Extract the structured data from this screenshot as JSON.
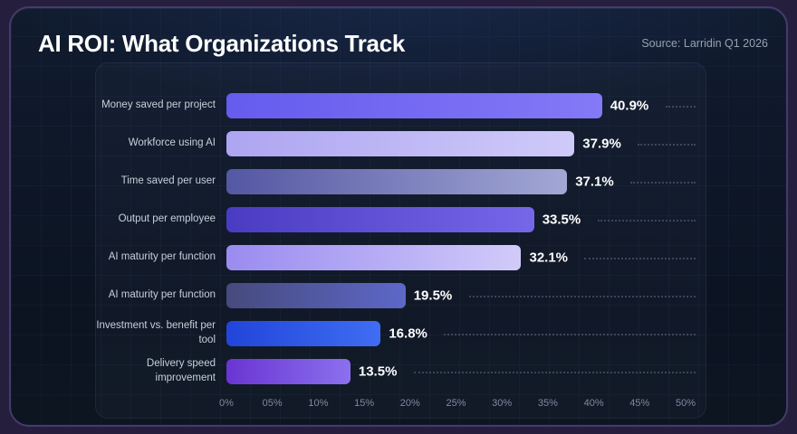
{
  "header": {
    "title": "AI ROI: What Organizations Track",
    "source": "Source: Larridin Q1 2026"
  },
  "chart_data": {
    "type": "bar",
    "orientation": "horizontal",
    "title": "AI ROI: What Organizations Track",
    "categories": [
      "Money saved per project",
      "Workforce using AI",
      "Time saved per user",
      "Output per employee",
      "AI maturity per function",
      "AI maturity per function",
      "Investment vs. benefit per tool",
      "Delivery speed improvement"
    ],
    "values": [
      40.9,
      37.9,
      37.1,
      33.5,
      32.1,
      19.5,
      16.8,
      13.5
    ],
    "value_labels": [
      "40.9%",
      "37.9%",
      "37.1%",
      "33.5%",
      "32.1%",
      "19.5%",
      "16.8%",
      "13.5%"
    ],
    "xlim": [
      0,
      50
    ],
    "x_tick_labels": [
      "0%",
      "05%",
      "10%",
      "15%",
      "20%",
      "25%",
      "30%",
      "35%",
      "40%",
      "45%",
      "50%"
    ],
    "x_tick_values": [
      0,
      5,
      10,
      15,
      20,
      25,
      30,
      35,
      40,
      45,
      50
    ],
    "grid": "faint blueprint grid on card background, dotted leader lines per row",
    "legend": "none",
    "bar_gradients": [
      [
        "#655bee",
        "#8479f6"
      ],
      [
        "#aea5f1",
        "#cfcaf9"
      ],
      [
        "#5457a2",
        "#a2a7d5"
      ],
      [
        "#4a3cc2",
        "#7667e9"
      ],
      [
        "#9a8bf0",
        "#d1cbf9"
      ],
      [
        "#464a7d",
        "#5d68c8"
      ],
      [
        "#2145da",
        "#3f6df3"
      ],
      [
        "#6a35d2",
        "#8b70ee"
      ]
    ],
    "colors": {
      "card_background": "#0c1422",
      "card_border": "#463a6d",
      "page_background": "#251e3d",
      "value_label": "#ffffff",
      "category_label": "#c8cfdb",
      "tick_label": "#7f8aa0"
    }
  }
}
